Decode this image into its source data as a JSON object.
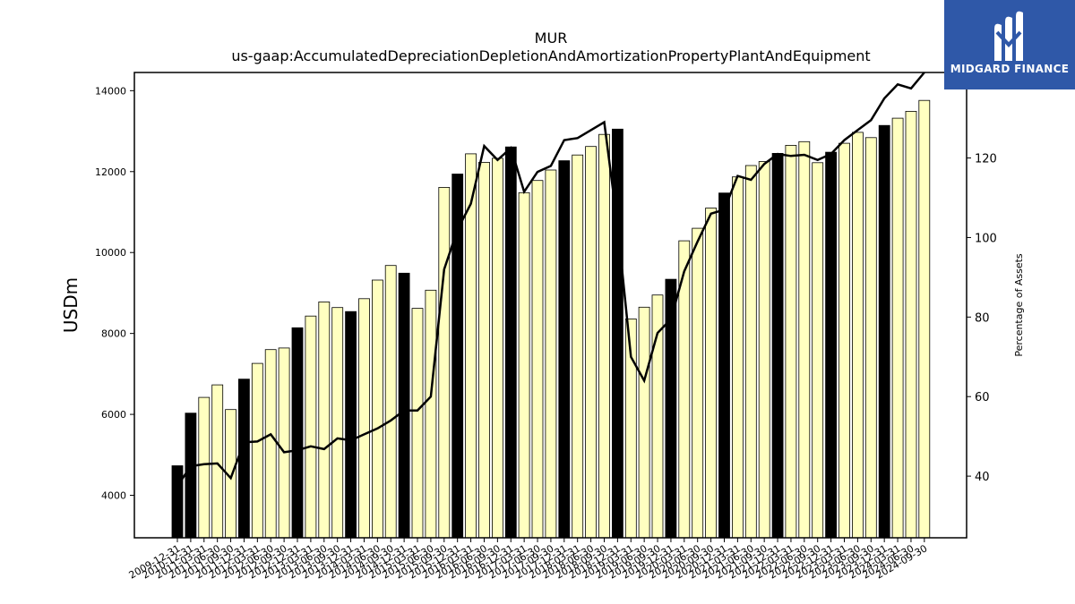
{
  "chart_data": {
    "type": "bar",
    "title": "MUR",
    "subtitle": "us-gaap:AccumulatedDepreciationDepletionAndAmortizationPropertyPlantAndEquipment",
    "ylabel": "USDm",
    "y2label": "Percentage of Assets",
    "ylim": [
      2950,
      14450
    ],
    "y2lim": [
      24.5,
      141.5
    ],
    "yticks": [
      4000,
      6000,
      8000,
      10000,
      12000,
      14000
    ],
    "y2ticks": [
      40,
      60,
      80,
      100,
      120
    ],
    "grid": false,
    "legend": "none",
    "categories": [
      "2009-12-31",
      "2010-12-31",
      "2011-03-31",
      "2011-06-30",
      "2011-09-30",
      "2011-12-31",
      "2012-03-31",
      "2012-06-30",
      "2012-09-30",
      "2012-12-31",
      "2013-03-31",
      "2013-06-30",
      "2013-09-30",
      "2013-12-31",
      "2014-03-31",
      "2014-06-30",
      "2014-09-30",
      "2014-12-31",
      "2015-03-31",
      "2015-06-30",
      "2015-09-30",
      "2015-12-31",
      "2016-03-31",
      "2016-06-30",
      "2016-09-30",
      "2016-12-31",
      "2017-03-31",
      "2017-06-30",
      "2017-09-30",
      "2017-12-31",
      "2018-03-31",
      "2018-06-30",
      "2018-09-30",
      "2018-12-31",
      "2019-03-31",
      "2019-06-30",
      "2019-09-30",
      "2019-12-31",
      "2020-03-31",
      "2020-06-30",
      "2020-09-30",
      "2020-12-31",
      "2021-03-31",
      "2021-06-30",
      "2021-09-30",
      "2021-12-31",
      "2022-03-31",
      "2022-06-30",
      "2022-09-30",
      "2022-12-31",
      "2023-03-31",
      "2023-06-30",
      "2023-09-30",
      "2023-12-31",
      "2024-03-31",
      "2024-06-30",
      "2024-09-30"
    ],
    "series": [
      {
        "type": "bar",
        "values": [
          4730,
          6030,
          6420,
          6730,
          6120,
          6870,
          7260,
          7600,
          7640,
          8140,
          8430,
          8780,
          8640,
          8540,
          8860,
          9320,
          9680,
          9490,
          8620,
          9070,
          11610,
          11940,
          12440,
          12230,
          12330,
          12610,
          11480,
          11780,
          12040,
          12270,
          12410,
          12620,
          12920,
          13050,
          8360,
          8650,
          8950,
          9340,
          10290,
          10600,
          11100,
          11470,
          11870,
          12150,
          12250,
          12450,
          12650,
          12740,
          12220,
          12480,
          12700,
          12970,
          12840,
          13140,
          13320,
          13490,
          13760
        ]
      },
      {
        "type": "line",
        "axis": "right",
        "values": [
          37.5,
          42.5,
          43,
          43.2,
          39.5,
          48.5,
          48.7,
          50.5,
          46,
          46.5,
          47.5,
          46.8,
          49.5,
          49,
          50.5,
          52,
          54,
          56.5,
          56.5,
          60,
          92,
          102,
          108.5,
          123,
          119.5,
          122.5,
          111.5,
          116.5,
          118,
          124.5,
          125,
          127,
          129,
          103,
          70,
          64,
          76,
          79.5,
          91.5,
          99,
          106,
          107,
          115.5,
          114.5,
          118.5,
          121,
          120.5,
          120.8,
          119.5,
          121,
          124.5,
          127,
          129.5,
          135,
          138.5,
          137.5,
          143
        ]
      }
    ],
    "bar_colors": {
      "annual": "#000000",
      "quarter": "#ffffc0",
      "edge": "#000000"
    },
    "line_color": "#000000"
  },
  "logo": {
    "text": "MIDGARD FINANCE",
    "bg_color": "#2f58a8"
  }
}
